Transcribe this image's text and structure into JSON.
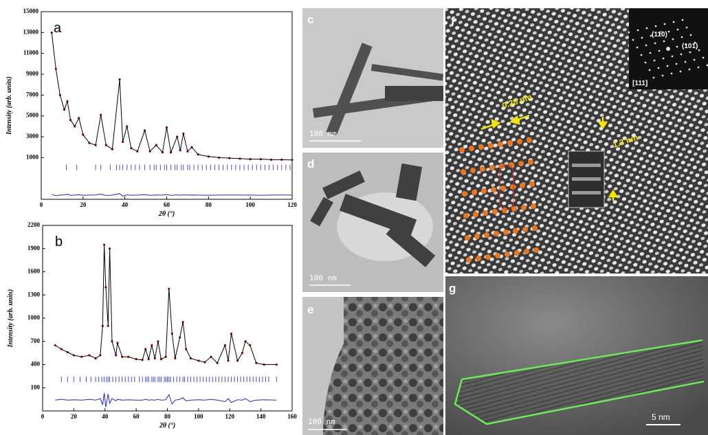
{
  "chart_data": [
    {
      "type": "line",
      "panel_label": "a",
      "x_label": "2θ (°)",
      "y_label": "Intensity (arb. units)",
      "xlim": [
        0,
        120
      ],
      "xticks": [
        0,
        20,
        40,
        60,
        80,
        100,
        120
      ],
      "ylim": [
        -3000,
        15000
      ],
      "yticks": [
        1000,
        3000,
        5000,
        7000,
        9000,
        11000,
        13000,
        15000
      ],
      "x": [
        5,
        7,
        9,
        11,
        12.5,
        14,
        16,
        18,
        20,
        23,
        26,
        28.5,
        31,
        34,
        37.5,
        39,
        41,
        43,
        46,
        49.5,
        52,
        55,
        58,
        60,
        62,
        65,
        66.5,
        68,
        70,
        72,
        75,
        80,
        85,
        90,
        95,
        100,
        105,
        110,
        115,
        120
      ],
      "series": [
        {
          "style": "points",
          "color": "#b00000",
          "values": [
            13000,
            9500,
            7000,
            5600,
            6400,
            4600,
            4000,
            4800,
            3200,
            2400,
            2200,
            5100,
            2200,
            1800,
            8500,
            2500,
            4000,
            1900,
            1600,
            3600,
            1600,
            2200,
            1500,
            3900,
            1500,
            3000,
            1700,
            3300,
            1600,
            2000,
            1300,
            1100,
            1000,
            950,
            900,
            850,
            850,
            800,
            800,
            780
          ]
        },
        {
          "style": "line",
          "color": "#000000",
          "values": [
            13000,
            9500,
            7000,
            5600,
            6400,
            4600,
            4000,
            4800,
            3200,
            2400,
            2200,
            5100,
            2200,
            1800,
            8500,
            2500,
            4000,
            1900,
            1600,
            3600,
            1600,
            2200,
            1500,
            3900,
            1500,
            3000,
            1700,
            3300,
            1600,
            2000,
            1300,
            1100,
            1000,
            950,
            900,
            850,
            850,
            800,
            800,
            780
          ]
        },
        {
          "style": "line",
          "color": "#2323c8",
          "values": [
            -2550,
            -2650,
            -2600,
            -2580,
            -2520,
            -2620,
            -2600,
            -2560,
            -2610,
            -2600,
            -2590,
            -2500,
            -2640,
            -2600,
            -2450,
            -2700,
            -2570,
            -2610,
            -2600,
            -2560,
            -2620,
            -2590,
            -2600,
            -2560,
            -2620,
            -2580,
            -2610,
            -2570,
            -2600,
            -2590,
            -2600,
            -2610,
            -2600,
            -2590,
            -2600,
            -2600,
            -2610,
            -2600,
            -2590,
            -2600
          ]
        }
      ],
      "reflections": [
        12,
        17,
        26,
        28.5,
        33,
        36,
        37.5,
        39,
        41,
        43,
        45,
        47,
        49.5,
        52,
        54,
        55,
        57,
        59,
        60,
        62,
        64,
        65,
        67,
        68,
        70,
        71,
        73,
        75,
        77,
        79,
        81,
        83,
        85,
        87,
        89,
        91,
        93,
        95,
        97,
        99,
        101,
        103,
        105,
        107,
        109,
        111,
        113,
        115,
        117,
        119
      ],
      "reflections_color": "#4a4ad0"
    },
    {
      "type": "line",
      "panel_label": "b",
      "x_label": "2θ (°)",
      "y_label": "Intensity (arb. units)",
      "xlim": [
        0,
        160
      ],
      "xticks": [
        0,
        20,
        40,
        60,
        80,
        100,
        120,
        140,
        160
      ],
      "ylim": [
        -200,
        2200
      ],
      "yticks": [
        100,
        400,
        700,
        1000,
        1300,
        1600,
        1900,
        2200
      ],
      "x": [
        8,
        12,
        16,
        20,
        25,
        30,
        34,
        37,
        38.5,
        39.5,
        40.5,
        42,
        43,
        44.5,
        47,
        48,
        51,
        55,
        60,
        64,
        66,
        68,
        70,
        72,
        74,
        76,
        79,
        81,
        83,
        85,
        88,
        90,
        92,
        95,
        100,
        104,
        108,
        112,
        117,
        119,
        121,
        125,
        128,
        130,
        133,
        137,
        142,
        150
      ],
      "series": [
        {
          "style": "points",
          "color": "#c00000",
          "values": [
            650,
            600,
            560,
            520,
            500,
            520,
            480,
            520,
            900,
            1950,
            1400,
            900,
            1900,
            700,
            520,
            680,
            500,
            500,
            470,
            460,
            600,
            470,
            650,
            480,
            700,
            470,
            500,
            1380,
            800,
            480,
            750,
            950,
            600,
            480,
            450,
            430,
            500,
            420,
            650,
            450,
            800,
            450,
            550,
            700,
            650,
            420,
            400,
            400
          ]
        },
        {
          "style": "line",
          "color": "#000000",
          "values": [
            650,
            600,
            560,
            520,
            500,
            520,
            480,
            520,
            900,
            1950,
            1400,
            900,
            1900,
            700,
            520,
            680,
            500,
            500,
            470,
            460,
            600,
            470,
            650,
            480,
            700,
            470,
            500,
            1380,
            800,
            480,
            750,
            950,
            600,
            480,
            450,
            430,
            500,
            420,
            650,
            450,
            800,
            450,
            550,
            700,
            650,
            420,
            400,
            400
          ]
        },
        {
          "style": "line",
          "color": "#2323c8",
          "values": [
            -60,
            -50,
            -60,
            -55,
            -60,
            -50,
            -60,
            -40,
            -120,
            30,
            -150,
            20,
            -100,
            -40,
            -70,
            -50,
            -60,
            -55,
            -60,
            -60,
            -50,
            -60,
            -55,
            -60,
            -50,
            -60,
            -55,
            10,
            -110,
            -60,
            -50,
            -30,
            -70,
            -60,
            -55,
            -60,
            -50,
            -60,
            -80,
            -40,
            -90,
            -55,
            -60,
            -40,
            -80,
            -60,
            -55,
            -60
          ]
        }
      ],
      "reflections": [
        12,
        16,
        20,
        24,
        28,
        31,
        34,
        36,
        38,
        39.5,
        41,
        42,
        43,
        45,
        47,
        49,
        51,
        53,
        55,
        57,
        59,
        62,
        64,
        66,
        67,
        68,
        70,
        71,
        72,
        74,
        75,
        76,
        78,
        79,
        80,
        81,
        82,
        84,
        86,
        88,
        90,
        91,
        93,
        95,
        97,
        99,
        101,
        103,
        105,
        107,
        109,
        111,
        113,
        115,
        117,
        119,
        121,
        123,
        125,
        127,
        129,
        131,
        133,
        135,
        137,
        139,
        141,
        143,
        145,
        150
      ],
      "reflections_color": "#4a4ad0"
    }
  ],
  "images": {
    "c": {
      "label": "c",
      "scale_bar": "100 nm"
    },
    "d": {
      "label": "d",
      "scale_bar": "100 nm"
    },
    "e": {
      "label": "e",
      "scale_bar": "100 nm"
    },
    "f": {
      "label": "f",
      "spacing_1": "0.28 nm",
      "spacing_2": "1.3 nm",
      "fft_spot_1": "(11̄0)",
      "fft_spot_2": "(101̄)",
      "zone_axis": "[111]"
    },
    "g": {
      "label": "g",
      "scale_bar": "5 nm"
    }
  }
}
